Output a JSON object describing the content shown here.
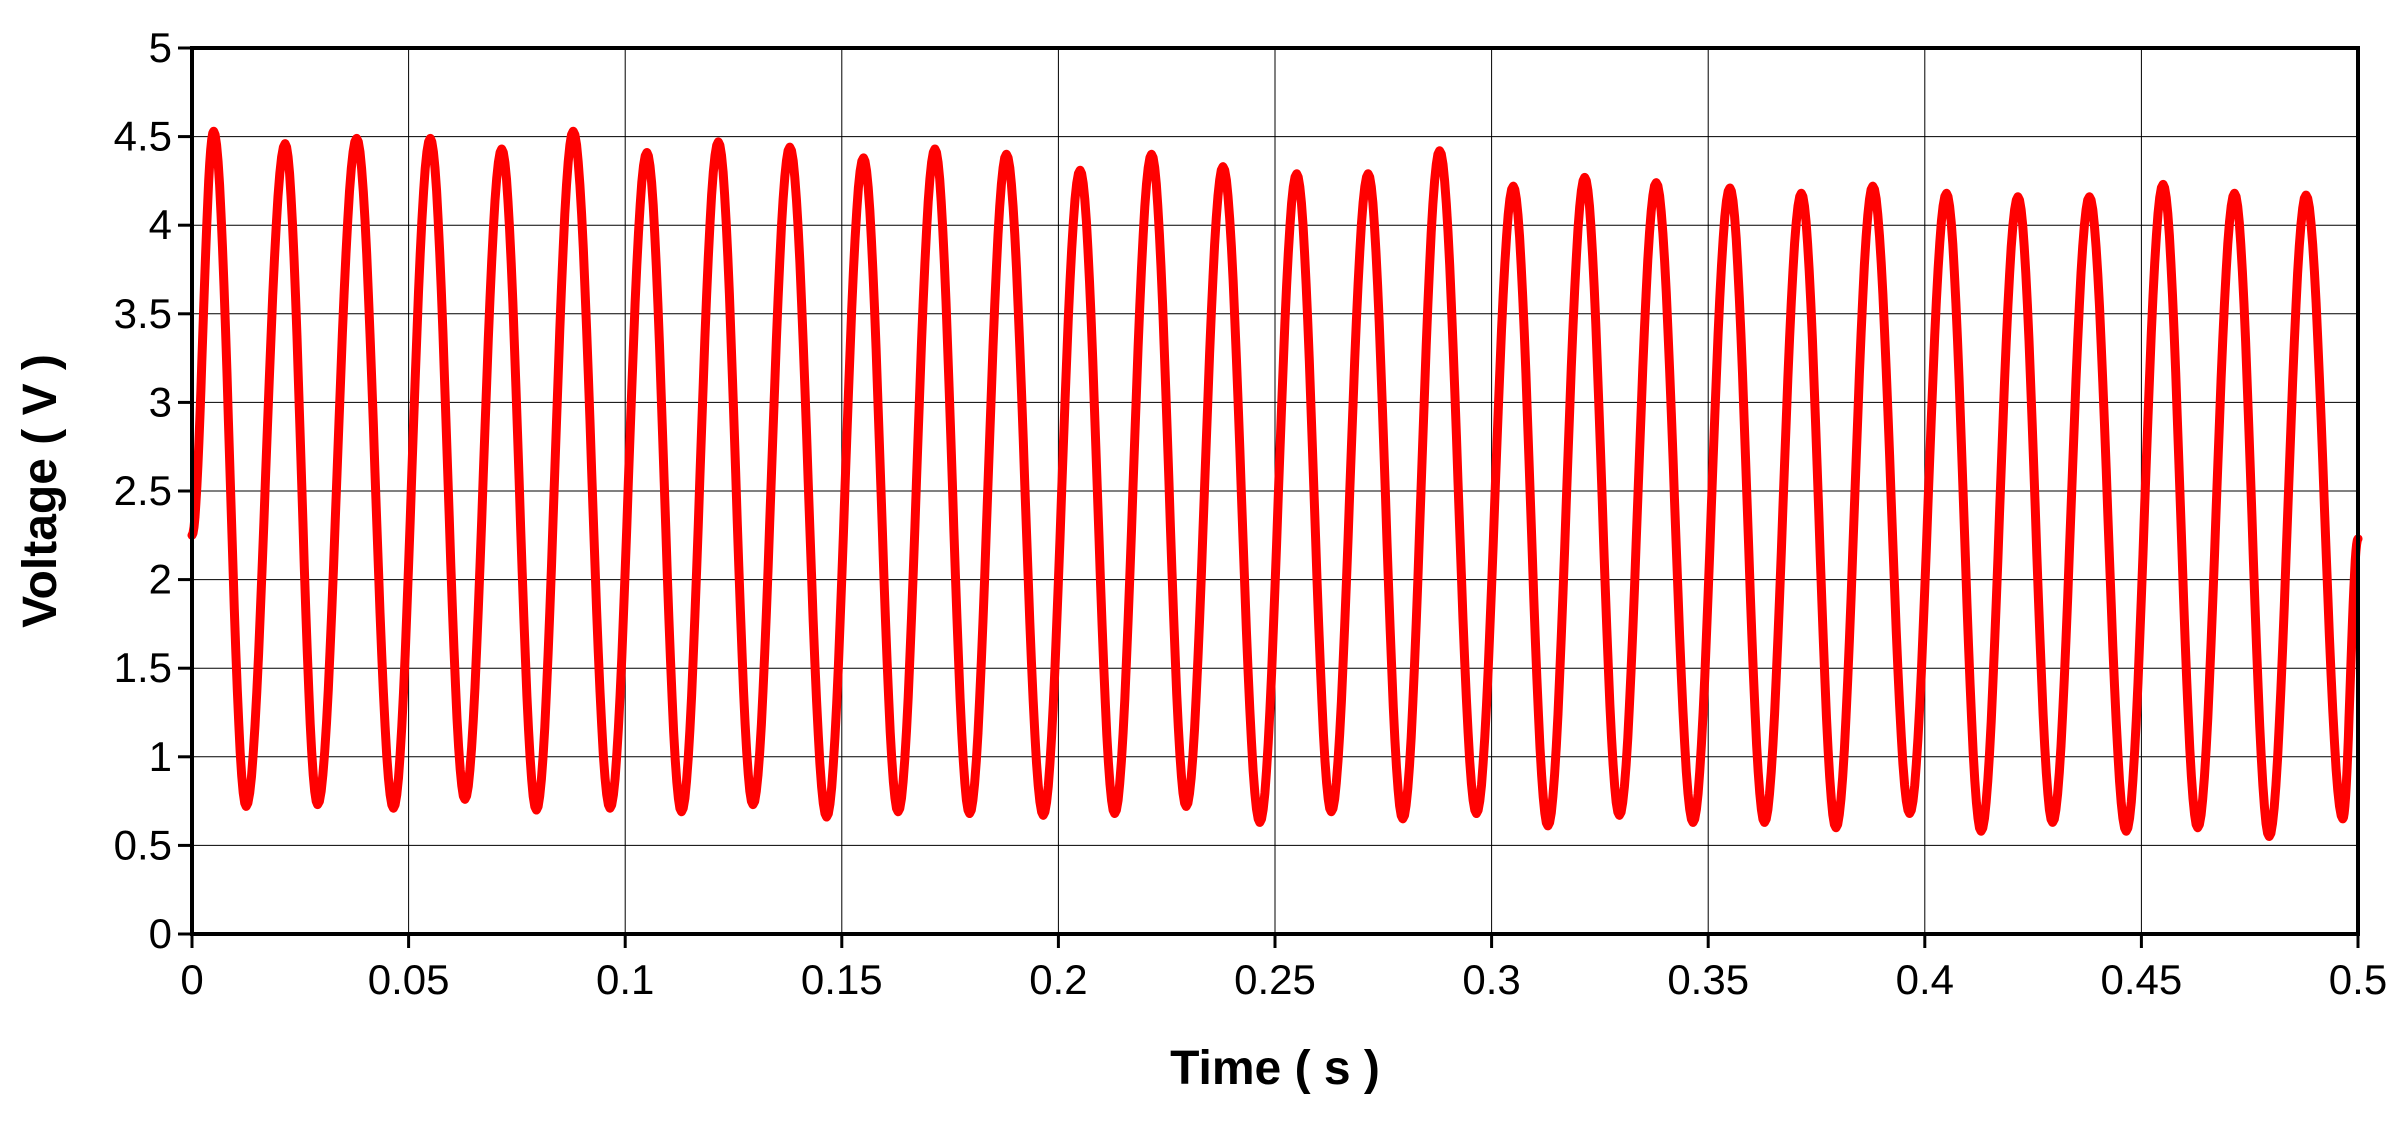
{
  "chart_data": {
    "type": "line",
    "title": "",
    "xlabel": "Time ( s )",
    "ylabel": "Voltage ( V )",
    "xlim": [
      0,
      0.5
    ],
    "ylim": [
      0,
      5
    ],
    "x_ticks": [
      "0",
      "0.05",
      "0.1",
      "0.15",
      "0.2",
      "0.25",
      "0.3",
      "0.35",
      "0.4",
      "0.45",
      "0.5"
    ],
    "y_ticks": [
      "0",
      "0.5",
      "1",
      "1.5",
      "2",
      "2.5",
      "3",
      "3.5",
      "4",
      "4.5",
      "5"
    ],
    "grid": true,
    "legend": "none",
    "line_color": "#ff0000",
    "series": [
      {
        "wave_start": [
          0,
          2.25
        ],
        "peaks": [
          [
            0.005,
            4.53
          ],
          [
            0.0215,
            4.46
          ],
          [
            0.038,
            4.49
          ],
          [
            0.055,
            4.49
          ],
          [
            0.0715,
            4.43
          ],
          [
            0.088,
            4.53
          ],
          [
            0.105,
            4.41
          ],
          [
            0.1215,
            4.47
          ],
          [
            0.138,
            4.44
          ],
          [
            0.155,
            4.38
          ],
          [
            0.1715,
            4.43
          ],
          [
            0.188,
            4.4
          ],
          [
            0.205,
            4.31
          ],
          [
            0.2215,
            4.4
          ],
          [
            0.238,
            4.33
          ],
          [
            0.255,
            4.29
          ],
          [
            0.2715,
            4.29
          ],
          [
            0.288,
            4.42
          ],
          [
            0.305,
            4.22
          ],
          [
            0.3215,
            4.27
          ],
          [
            0.338,
            4.24
          ],
          [
            0.355,
            4.21
          ],
          [
            0.3715,
            4.18
          ],
          [
            0.388,
            4.22
          ],
          [
            0.405,
            4.18
          ],
          [
            0.4215,
            4.16
          ],
          [
            0.438,
            4.16
          ],
          [
            0.455,
            4.23
          ],
          [
            0.4715,
            4.18
          ],
          [
            0.488,
            4.17
          ]
        ],
        "troughs": [
          [
            0.0125,
            0.72
          ],
          [
            0.029,
            0.73
          ],
          [
            0.0465,
            0.71
          ],
          [
            0.063,
            0.76
          ],
          [
            0.0795,
            0.7
          ],
          [
            0.0965,
            0.71
          ],
          [
            0.113,
            0.69
          ],
          [
            0.1295,
            0.73
          ],
          [
            0.1465,
            0.66
          ],
          [
            0.163,
            0.69
          ],
          [
            0.1795,
            0.68
          ],
          [
            0.1965,
            0.67
          ],
          [
            0.213,
            0.68
          ],
          [
            0.2295,
            0.72
          ],
          [
            0.2465,
            0.63
          ],
          [
            0.263,
            0.69
          ],
          [
            0.2795,
            0.65
          ],
          [
            0.2965,
            0.68
          ],
          [
            0.313,
            0.61
          ],
          [
            0.3295,
            0.67
          ],
          [
            0.3465,
            0.63
          ],
          [
            0.363,
            0.63
          ],
          [
            0.3795,
            0.6
          ],
          [
            0.3965,
            0.68
          ],
          [
            0.413,
            0.58
          ],
          [
            0.4295,
            0.63
          ],
          [
            0.4465,
            0.58
          ],
          [
            0.463,
            0.6
          ],
          [
            0.4795,
            0.55
          ],
          [
            0.4965,
            0.65
          ]
        ],
        "wave_end": [
          0.5,
          2.23
        ]
      }
    ]
  }
}
